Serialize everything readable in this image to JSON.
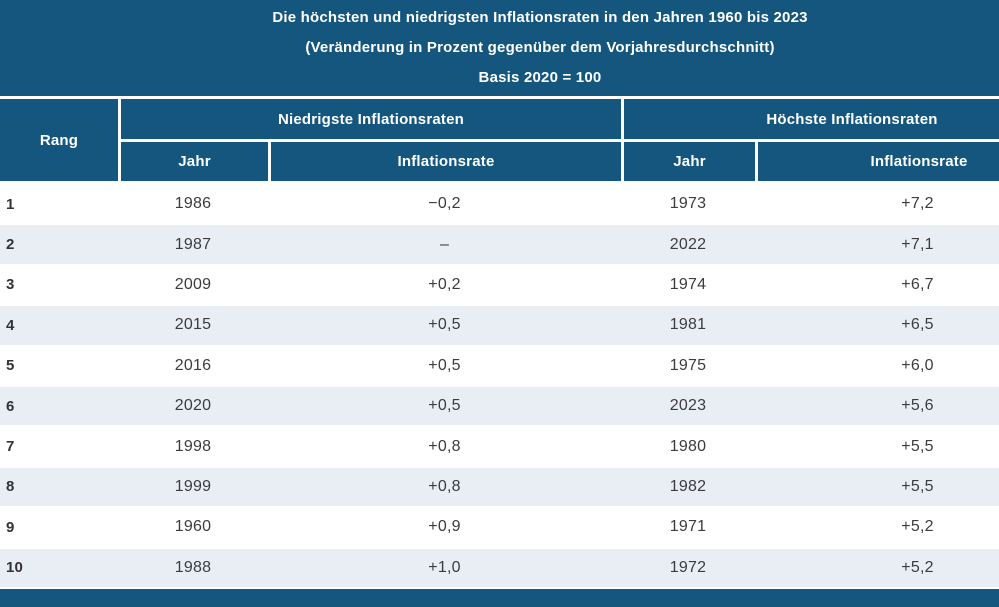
{
  "colors": {
    "header_blue": "#15567E",
    "stripe_light": "#E9EDF4",
    "row_white": "#FFFFFF",
    "data_text": "#3C3C40",
    "header_text": "#FFFFFF"
  },
  "title": {
    "line1": "Die höchsten und niedrigsten Inflationsraten in den Jahren 1960 bis 2023",
    "line2": "(Veränderung in Prozent gegenüber dem Vorjahresdurchschnitt)",
    "line3": "Basis 2020 = 100"
  },
  "table": {
    "rank_header": "Rang",
    "group_low": "Niedrigste Inflationsraten",
    "group_high": "Höchste Inflationsraten",
    "sub_year_low": "Jahr",
    "sub_rate_low": "Inflationsrate",
    "sub_year_high": "Jahr",
    "sub_rate_high": "Inflationsrate",
    "rows": [
      {
        "rank": "1",
        "low_year": "1986",
        "low_rate": "−0,2",
        "high_year": "1973",
        "high_rate": "+7,2"
      },
      {
        "rank": "2",
        "low_year": "1987",
        "low_rate": "–",
        "high_year": "2022",
        "high_rate": "+7,1"
      },
      {
        "rank": "3",
        "low_year": "2009",
        "low_rate": "+0,2",
        "high_year": "1974",
        "high_rate": "+6,7"
      },
      {
        "rank": "4",
        "low_year": "2015",
        "low_rate": "+0,5",
        "high_year": "1981",
        "high_rate": "+6,5"
      },
      {
        "rank": "5",
        "low_year": "2016",
        "low_rate": "+0,5",
        "high_year": "1975",
        "high_rate": "+6,0"
      },
      {
        "rank": "6",
        "low_year": "2020",
        "low_rate": "+0,5",
        "high_year": "2023",
        "high_rate": "+5,6"
      },
      {
        "rank": "7",
        "low_year": "1998",
        "low_rate": "+0,8",
        "high_year": "1980",
        "high_rate": "+5,5"
      },
      {
        "rank": "8",
        "low_year": "1999",
        "low_rate": "+0,8",
        "high_year": "1982",
        "high_rate": "+5,5"
      },
      {
        "rank": "9",
        "low_year": "1960",
        "low_rate": "+0,9",
        "high_year": "1971",
        "high_rate": "+5,2"
      },
      {
        "rank": "10",
        "low_year": "1988",
        "low_rate": "+1,0",
        "high_year": "1972",
        "high_rate": "+5,2"
      }
    ]
  },
  "chart_data": {
    "type": "table",
    "title": "Die höchsten und niedrigsten Inflationsraten in den Jahren 1960 bis 2023",
    "subtitle": "(Veränderung in Prozent gegenüber dem Vorjahresdurchschnitt)",
    "note": "Basis 2020 = 100",
    "columns": [
      "Rang",
      "Niedrigste Inflationsraten – Jahr",
      "Niedrigste Inflationsraten – Inflationsrate",
      "Höchste Inflationsraten – Jahr",
      "Höchste Inflationsraten – Inflationsrate"
    ],
    "lowest": {
      "years": [
        1986,
        1987,
        2009,
        2015,
        2016,
        2020,
        1998,
        1999,
        1960,
        1988
      ],
      "rates": [
        -0.2,
        null,
        0.2,
        0.5,
        0.5,
        0.5,
        0.8,
        0.8,
        0.9,
        1.0
      ]
    },
    "highest": {
      "years": [
        1973,
        2022,
        1974,
        1981,
        1975,
        2023,
        1980,
        1982,
        1971,
        1972
      ],
      "rates": [
        7.2,
        7.1,
        6.7,
        6.5,
        6.0,
        5.6,
        5.5,
        5.5,
        5.2,
        5.2
      ]
    },
    "ranks": [
      1,
      2,
      3,
      4,
      5,
      6,
      7,
      8,
      9,
      10
    ]
  }
}
